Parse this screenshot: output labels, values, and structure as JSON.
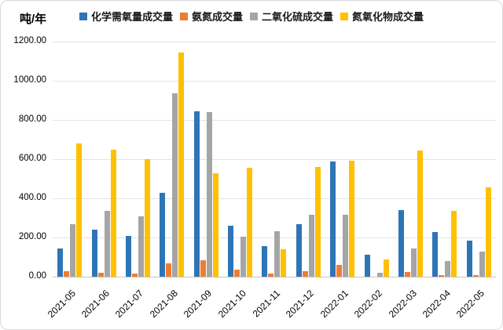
{
  "chart_data": {
    "type": "bar",
    "title": "",
    "ylabel": "吨/年",
    "xlabel": "",
    "grid": true,
    "legend_position": "top",
    "ylim": [
      0,
      1200
    ],
    "ytick_step": 200,
    "ytick_labels": [
      "0.00",
      "200.00",
      "400.00",
      "600.00",
      "800.00",
      "1000.00",
      "1200.00"
    ],
    "categories": [
      "2021-05",
      "2021-06",
      "2021-07",
      "2021-08",
      "2021-09",
      "2021-10",
      "2021-11",
      "2021-12",
      "2022-01",
      "2022-02",
      "2022-03",
      "2022-04",
      "2022-05"
    ],
    "series": [
      {
        "name": "化学需氧量成交量",
        "color": "#2E75B6",
        "values": [
          143,
          240,
          210,
          430,
          845,
          262,
          158,
          268,
          590,
          114,
          342,
          229,
          186
        ]
      },
      {
        "name": "氨氮成交量",
        "color": "#ED7D31",
        "values": [
          28,
          20,
          15,
          68,
          83,
          35,
          15,
          28,
          60,
          0,
          25,
          8,
          8
        ]
      },
      {
        "name": "二氧化硫成交量",
        "color": "#A5A5A5",
        "values": [
          270,
          338,
          308,
          938,
          840,
          203,
          234,
          315,
          315,
          22,
          143,
          80,
          130
        ]
      },
      {
        "name": "氮氧化物成交量",
        "color": "#FFC000",
        "values": [
          682,
          650,
          600,
          1145,
          528,
          558,
          140,
          562,
          592,
          90,
          645,
          336,
          458
        ]
      }
    ]
  },
  "palette": {
    "gridline": "#e3e3e3",
    "axis_line": "#c6c6c6",
    "frame_border": "#d9d9d9",
    "text": "#000000"
  }
}
